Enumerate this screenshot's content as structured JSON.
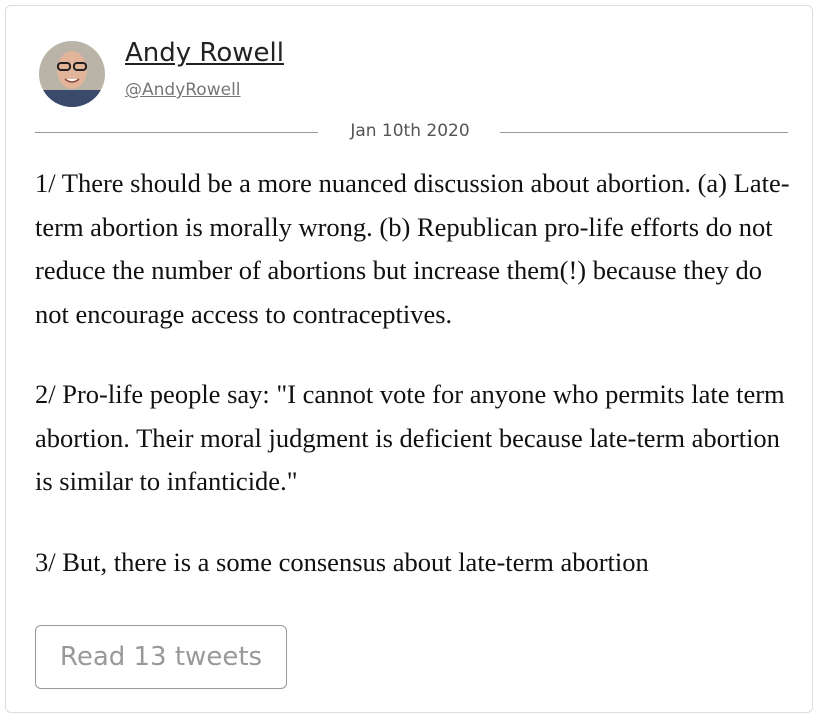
{
  "author": {
    "name": "Andy Rowell",
    "handle": "@AndyRowell"
  },
  "date": "Jan 10th 2020",
  "tweets": [
    "1/ There should be a more nuanced discussion about abortion. (a) Late-term abortion is morally wrong. (b) Republican pro-life efforts do not reduce the number of abortions but increase them(!) because they do not encourage access to contraceptives.",
    "2/ Pro-life people say: \"I cannot vote for anyone who permits late term abortion. Their moral judgment is deficient because late-term abortion is similar to infanticide.\"",
    "3/ But, there is a some consensus about late-term abortion"
  ],
  "button": "Read 13 tweets"
}
